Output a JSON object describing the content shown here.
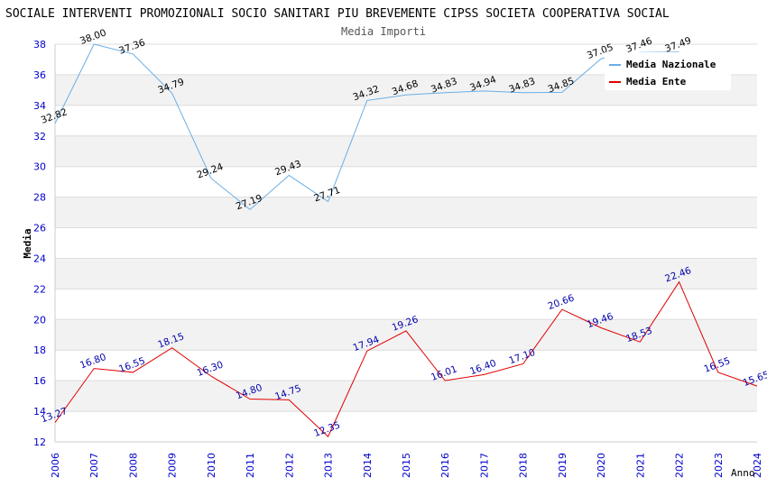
{
  "chart_data": {
    "type": "line",
    "title": "SOCIALE INTERVENTI PROMOZIONALI SOCIO SANITARI PIU BREVEMENTE CIPSS SOCIETA COOPERATIVA SOCIAL",
    "subtitle": "Media Importi",
    "xlabel": "Anno",
    "ylabel": "Media",
    "ylim": [
      12,
      38
    ],
    "yticks": [
      "12",
      "14",
      "16",
      "18",
      "20",
      "22",
      "24",
      "26",
      "28",
      "30",
      "32",
      "34",
      "36",
      "38"
    ],
    "categories": [
      "2006",
      "2007",
      "2008",
      "2009",
      "2010",
      "2011",
      "2012",
      "2013",
      "2014",
      "2015",
      "2016",
      "2017",
      "2018",
      "2019",
      "2020",
      "2021",
      "2022",
      "2023",
      "2024"
    ],
    "legend_position": "top-right",
    "series": [
      {
        "name": "Media Nazionale",
        "color": "#6aaee6",
        "label_color": "#000000",
        "values": [
          32.82,
          38.0,
          37.36,
          34.79,
          29.24,
          27.19,
          29.43,
          27.71,
          34.32,
          34.68,
          34.83,
          34.94,
          34.83,
          34.85,
          37.05,
          37.46,
          37.49,
          null,
          null
        ],
        "labels": [
          "32.82",
          "38.00",
          "37.36",
          "34.79",
          "29.24",
          "27.19",
          "29.43",
          "27.71",
          "34.32",
          "34.68",
          "34.83",
          "34.94",
          "34.83",
          "34.85",
          "37.05",
          "37.46",
          "37.49",
          "",
          ""
        ]
      },
      {
        "name": "Media Ente",
        "color": "#e00000",
        "label_color": "#0000aa",
        "values": [
          13.27,
          16.8,
          16.55,
          18.15,
          16.3,
          14.8,
          14.75,
          12.35,
          17.94,
          19.26,
          16.01,
          16.4,
          17.1,
          20.66,
          19.46,
          18.53,
          22.46,
          16.55,
          15.65
        ],
        "labels": [
          "13.27",
          "16.80",
          "16.55",
          "18.15",
          "16.30",
          "14.80",
          "14.75",
          "12.35",
          "17.94",
          "19.26",
          "16.01",
          "16.40",
          "17.10",
          "20.66",
          "19.46",
          "18.53",
          "22.46",
          "16.55",
          "15.65"
        ]
      }
    ]
  }
}
